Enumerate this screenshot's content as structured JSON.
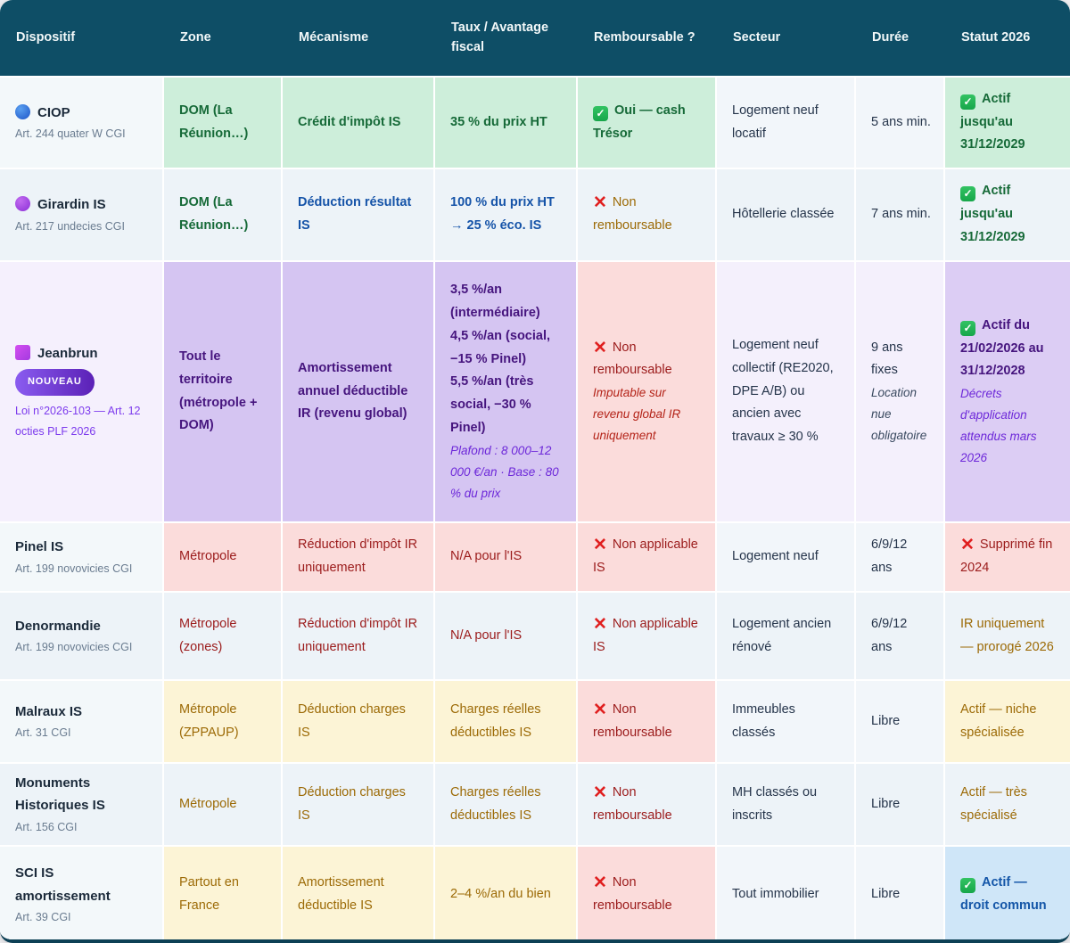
{
  "icons": {
    "check": "✓",
    "cross": "✕"
  },
  "header": {
    "columns": [
      "Dispositif",
      "Zone",
      "Mécanisme",
      "Taux / Avantage fiscal",
      "Remboursable ?",
      "Secteur",
      "Durée",
      "Statut 2026"
    ]
  },
  "colors": {
    "header_bg": "#0e4e66",
    "green_bg": "#cdeeda",
    "green_text": "#166a38",
    "blue_bg": "#d8e9f9",
    "blue_text": "#1553a8",
    "yellow_bg": "#fcf4d6",
    "yellow_text": "#9c6a06",
    "pink_bg": "#fbdcdb",
    "red_text": "#9b1b1b",
    "purple_bg": "#d5c5f2",
    "purple_text": "#46157e",
    "lightblue_bg": "#cfe6f8",
    "check_green": "#17a64a",
    "cross_red": "#e01f1f"
  },
  "rows": {
    "ciop": {
      "name": "CIOP",
      "ref": "Art. 244 quater W CGI",
      "zone": "DOM (La Réunion…)",
      "mecanisme": "Crédit d'impôt IS",
      "taux": "35 % du prix HT",
      "remboursable": "Oui — cash Trésor",
      "secteur": "Logement neuf locatif",
      "duree": "5 ans min.",
      "statut": "Actif jusqu'au 31/12/2029"
    },
    "girardin": {
      "name": "Girardin IS",
      "ref": "Art. 217 undecies CGI",
      "zone": "DOM (La Réunion…)",
      "mecanisme": "Déduction résultat IS",
      "taux": "100 % du prix HT → 25 % éco. IS",
      "remboursable": "Non remboursable",
      "secteur": "Hôtellerie classée",
      "duree": "7 ans min.",
      "statut": "Actif jusqu'au 31/12/2029"
    },
    "jeanbrun": {
      "name": "Jeanbrun",
      "badge": "NOUVEAU",
      "ref": "Loi n°2026-103 — Art. 12 octies PLF 2026",
      "zone": "Tout le territoire (métropole + DOM)",
      "mecanisme": "Amortissement annuel déductible IR (revenu global)",
      "taux_lines": [
        "3,5 %/an (intermédiaire)",
        "4,5 %/an (social, −15 % Pinel)",
        "5,5 %/an (très social, −30 % Pinel)"
      ],
      "taux_note": "Plafond : 8 000–12 000 €/an · Base : 80 % du prix",
      "remboursable": "Non remboursable",
      "remboursable_note": "Imputable sur revenu global IR uniquement",
      "secteur": "Logement neuf collectif (RE2020, DPE A/B) ou ancien avec travaux ≥ 30 %",
      "duree": "9 ans fixes",
      "duree_note": "Location nue obligatoire",
      "statut": "Actif du 21/02/2026 au 31/12/2028",
      "statut_note": "Décrets d'application attendus mars 2026"
    },
    "pinel": {
      "name": "Pinel IS",
      "ref": "Art. 199 novovicies CGI",
      "zone": "Métropole",
      "mecanisme": "Réduction d'impôt IR uniquement",
      "taux": "N/A pour l'IS",
      "remboursable": "Non applicable IS",
      "secteur": "Logement neuf",
      "duree": "6/9/12 ans",
      "statut": "Supprimé fin 2024"
    },
    "denormandie": {
      "name": "Denormandie",
      "ref": "Art. 199 novovicies CGI",
      "zone": "Métropole (zones)",
      "mecanisme": "Réduction d'impôt IR uniquement",
      "taux": "N/A pour l'IS",
      "remboursable": "Non applicable IS",
      "secteur": "Logement ancien rénové",
      "duree": "6/9/12 ans",
      "statut": "IR uniquement — prorogé 2026"
    },
    "malraux": {
      "name": "Malraux IS",
      "ref": "Art. 31 CGI",
      "zone": "Métropole (ZPPAUP)",
      "mecanisme": "Déduction charges IS",
      "taux": "Charges réelles déductibles IS",
      "remboursable": "Non remboursable",
      "secteur": "Immeubles classés",
      "duree": "Libre",
      "statut": "Actif — niche spécialisée"
    },
    "monuments": {
      "name": "Monuments Historiques IS",
      "ref": "Art. 156 CGI",
      "zone": "Métropole",
      "mecanisme": "Déduction charges IS",
      "taux": "Charges réelles déductibles IS",
      "remboursable": "Non remboursable",
      "secteur": "MH classés ou inscrits",
      "duree": "Libre",
      "statut": "Actif — très spécialisé"
    },
    "sci": {
      "name": "SCI IS amortissement",
      "ref": "Art. 39 CGI",
      "zone": "Partout en France",
      "mecanisme": "Amortissement déductible IS",
      "taux": "2–4 %/an du bien",
      "remboursable": "Non remboursable",
      "secteur": "Tout immobilier",
      "duree": "Libre",
      "statut": "Actif — droit commun"
    }
  }
}
